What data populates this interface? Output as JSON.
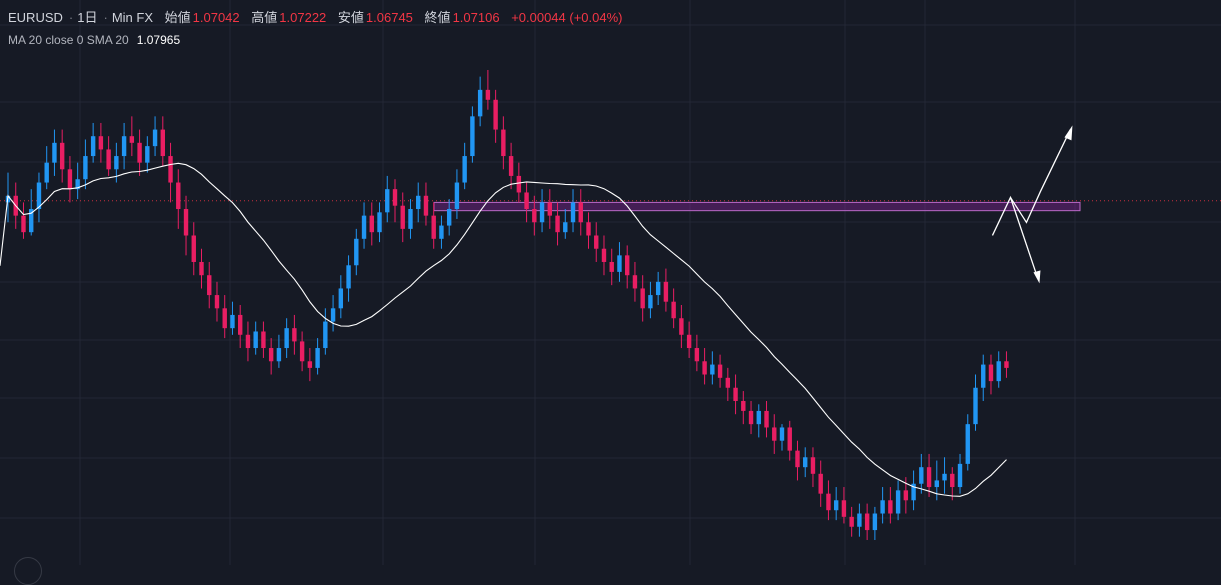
{
  "header": {
    "symbol": "EURUSD",
    "interval": "1日",
    "source": "Min FX",
    "open_label": "始値",
    "open_value": "1.07042",
    "high_label": "高値",
    "high_value": "1.07222",
    "low_label": "安値",
    "low_value": "1.06745",
    "close_label": "終値",
    "close_value": "1.07106",
    "change": "+0.00044 (+0.04%)"
  },
  "indicator": {
    "label": "MA 20 close 0 SMA 20",
    "value": "1.07965"
  },
  "colors": {
    "background": "#161a25",
    "up": "#2196f3",
    "down": "#e91e63",
    "ma_line": "#ffffff",
    "zone_fill": "#9c27b0",
    "zone_border": "#ba68c8",
    "price_line": "#f23645"
  },
  "chart_data": {
    "type": "candlestick",
    "notes": "Daily EURUSD candles (shape only, no price axis visible). Values are relative price levels 0-100.",
    "candles": [
      [
        66,
        68,
        75,
        60
      ],
      [
        68,
        62,
        72,
        58
      ],
      [
        62,
        57,
        66,
        55
      ],
      [
        57,
        64,
        70,
        56
      ],
      [
        64,
        72,
        75,
        60
      ],
      [
        72,
        78,
        83,
        70
      ],
      [
        78,
        84,
        88,
        74
      ],
      [
        84,
        76,
        88,
        72
      ],
      [
        76,
        70,
        80,
        66
      ],
      [
        70,
        73,
        78,
        67
      ],
      [
        73,
        80,
        85,
        70
      ],
      [
        80,
        86,
        90,
        78
      ],
      [
        86,
        82,
        90,
        78
      ],
      [
        82,
        76,
        86,
        74
      ],
      [
        76,
        80,
        84,
        72
      ],
      [
        80,
        86,
        90,
        76
      ],
      [
        86,
        84,
        92,
        80
      ],
      [
        84,
        78,
        88,
        74
      ],
      [
        78,
        83,
        86,
        75
      ],
      [
        83,
        88,
        92,
        80
      ],
      [
        88,
        80,
        92,
        77
      ],
      [
        80,
        72,
        84,
        66
      ],
      [
        72,
        64,
        76,
        58
      ],
      [
        64,
        56,
        68,
        50
      ],
      [
        56,
        48,
        60,
        44
      ],
      [
        48,
        44,
        52,
        40
      ],
      [
        44,
        38,
        48,
        34
      ],
      [
        38,
        34,
        42,
        30
      ],
      [
        34,
        28,
        38,
        25
      ],
      [
        28,
        32,
        36,
        26
      ],
      [
        32,
        26,
        35,
        22
      ],
      [
        26,
        22,
        30,
        18
      ],
      [
        22,
        27,
        30,
        20
      ],
      [
        27,
        22,
        30,
        19
      ],
      [
        22,
        18,
        25,
        14
      ],
      [
        18,
        22,
        26,
        16
      ],
      [
        22,
        28,
        31,
        19
      ],
      [
        28,
        24,
        32,
        20
      ],
      [
        24,
        18,
        27,
        15
      ],
      [
        18,
        16,
        22,
        12
      ],
      [
        16,
        22,
        25,
        14
      ],
      [
        22,
        30,
        34,
        20
      ],
      [
        30,
        34,
        38,
        27
      ],
      [
        34,
        40,
        44,
        31
      ],
      [
        40,
        47,
        50,
        36
      ],
      [
        47,
        55,
        58,
        44
      ],
      [
        55,
        62,
        66,
        52
      ],
      [
        62,
        57,
        66,
        53
      ],
      [
        57,
        63,
        66,
        54
      ],
      [
        63,
        70,
        74,
        60
      ],
      [
        70,
        65,
        73,
        60
      ],
      [
        65,
        58,
        69,
        54
      ],
      [
        58,
        64,
        67,
        55
      ],
      [
        64,
        68,
        72,
        60
      ],
      [
        68,
        62,
        72,
        59
      ],
      [
        62,
        55,
        66,
        52
      ],
      [
        55,
        59,
        62,
        52
      ],
      [
        59,
        64,
        67,
        56
      ],
      [
        64,
        72,
        76,
        61
      ],
      [
        72,
        80,
        84,
        70
      ],
      [
        80,
        92,
        95,
        78
      ],
      [
        92,
        100,
        104,
        89
      ],
      [
        100,
        97,
        106,
        94
      ],
      [
        97,
        88,
        100,
        84
      ],
      [
        88,
        80,
        92,
        76
      ],
      [
        80,
        74,
        84,
        70
      ],
      [
        74,
        69,
        78,
        66
      ],
      [
        69,
        64,
        72,
        60
      ],
      [
        64,
        60,
        68,
        56
      ],
      [
        60,
        66,
        70,
        57
      ],
      [
        66,
        62,
        70,
        58
      ],
      [
        62,
        57,
        66,
        53
      ],
      [
        57,
        60,
        64,
        55
      ],
      [
        60,
        66,
        70,
        57
      ],
      [
        66,
        60,
        70,
        56
      ],
      [
        60,
        56,
        63,
        52
      ],
      [
        56,
        52,
        60,
        48
      ],
      [
        52,
        48,
        56,
        44
      ],
      [
        48,
        45,
        52,
        41
      ],
      [
        45,
        50,
        54,
        42
      ],
      [
        50,
        44,
        53,
        40
      ],
      [
        44,
        40,
        48,
        36
      ],
      [
        40,
        34,
        44,
        30
      ],
      [
        34,
        38,
        42,
        31
      ],
      [
        38,
        42,
        45,
        35
      ],
      [
        42,
        36,
        46,
        33
      ],
      [
        36,
        31,
        40,
        28
      ],
      [
        31,
        26,
        35,
        22
      ],
      [
        26,
        22,
        30,
        19
      ],
      [
        22,
        18,
        26,
        15
      ],
      [
        18,
        14,
        22,
        11
      ],
      [
        14,
        17,
        21,
        11
      ],
      [
        17,
        13,
        20,
        10
      ],
      [
        13,
        10,
        16,
        6
      ],
      [
        10,
        6,
        14,
        2
      ],
      [
        6,
        3,
        9,
        -1
      ],
      [
        3,
        -1,
        6,
        -4
      ],
      [
        -1,
        3,
        5,
        -5
      ],
      [
        3,
        -2,
        6,
        -5
      ],
      [
        -2,
        -6,
        2,
        -10
      ],
      [
        -6,
        -2,
        -1,
        -9
      ],
      [
        -2,
        -9,
        0,
        -12
      ],
      [
        -9,
        -14,
        -6,
        -18
      ],
      [
        -14,
        -11,
        -8,
        -17
      ],
      [
        -11,
        -16,
        -8,
        -20
      ],
      [
        -16,
        -22,
        -12,
        -26
      ],
      [
        -22,
        -27,
        -18,
        -30
      ],
      [
        -27,
        -24,
        -20,
        -30
      ],
      [
        -24,
        -29,
        -20,
        -31
      ],
      [
        -29,
        -32,
        -26,
        -35
      ],
      [
        -32,
        -28,
        -25,
        -35
      ],
      [
        -28,
        -33,
        -25,
        -36
      ],
      [
        -33,
        -28,
        -26,
        -36
      ],
      [
        -28,
        -24,
        -20,
        -31
      ],
      [
        -24,
        -28,
        -20,
        -31
      ],
      [
        -28,
        -21,
        -18,
        -30
      ],
      [
        -21,
        -24,
        -17,
        -28
      ],
      [
        -24,
        -19,
        -15,
        -27
      ],
      [
        -19,
        -14,
        -10,
        -22
      ],
      [
        -14,
        -20,
        -10,
        -23
      ],
      [
        -20,
        -18,
        -12,
        -24
      ],
      [
        -18,
        -16,
        -11,
        -22
      ],
      [
        -16,
        -20,
        -14,
        -24
      ],
      [
        -20,
        -13,
        -10,
        -22
      ],
      [
        -13,
        -1,
        2,
        -15
      ],
      [
        -1,
        10,
        14,
        -3
      ],
      [
        10,
        17,
        20,
        6
      ],
      [
        17,
        12,
        20,
        8
      ],
      [
        12,
        18,
        21,
        10
      ],
      [
        18,
        16,
        21,
        13
      ]
    ],
    "ma_period": 20,
    "resistance_zone": {
      "high": 66,
      "low": 63.5
    },
    "last_close_line": 66.5,
    "scenario_arrows": [
      "upside",
      "downside"
    ]
  }
}
